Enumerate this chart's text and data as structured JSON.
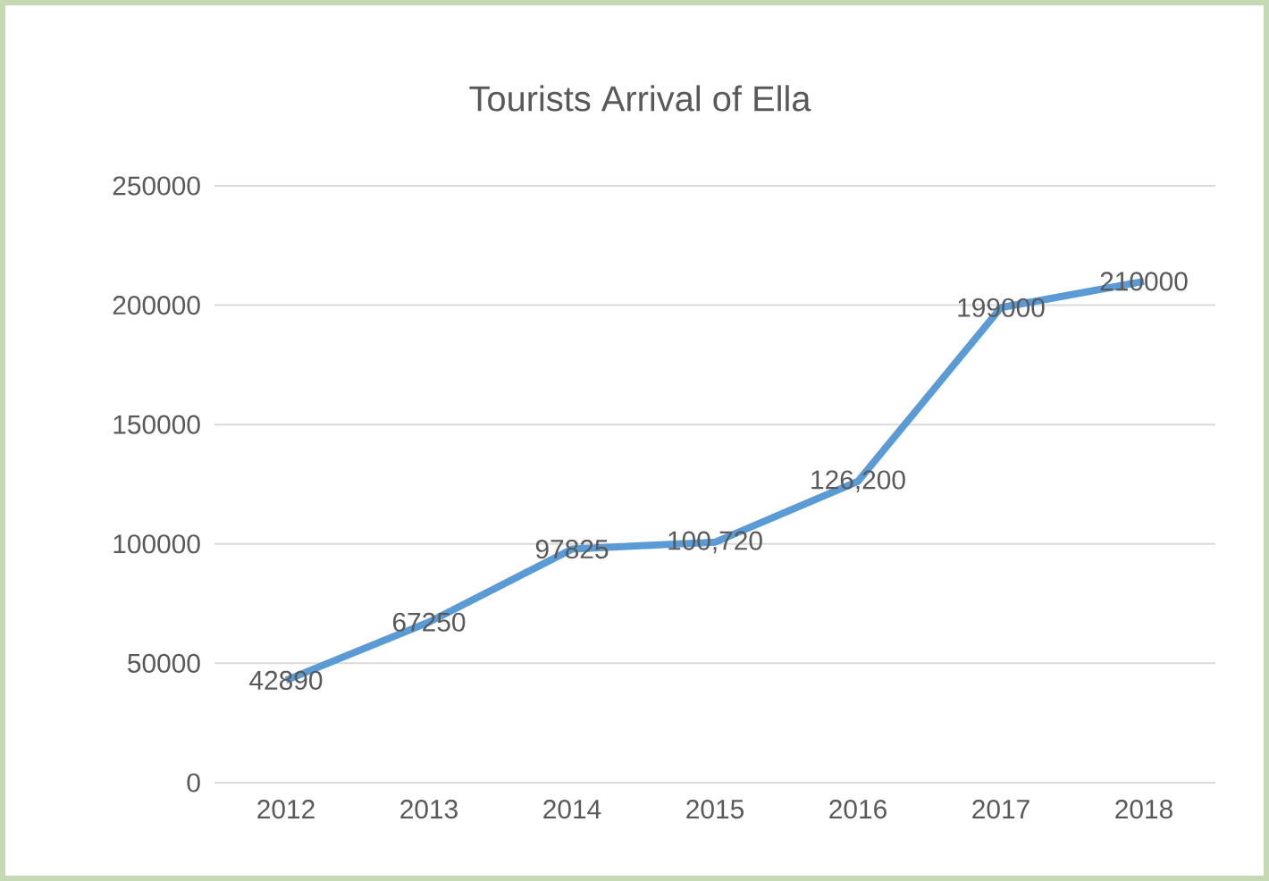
{
  "chart_data": {
    "type": "line",
    "title": "Tourists Arrival of Ella",
    "categories": [
      "2012",
      "2013",
      "2014",
      "2015",
      "2016",
      "2017",
      "2018"
    ],
    "values": [
      42890,
      67250,
      97825,
      100720,
      126200,
      199000,
      210000
    ],
    "value_labels": [
      "42890",
      "67250",
      "97825",
      "100,720",
      "126,200",
      "199000",
      "210000"
    ],
    "color": "#5b9bd5",
    "ylim": [
      0,
      250000
    ],
    "yticks": [
      0,
      50000,
      100000,
      150000,
      200000,
      250000
    ],
    "grid": "y",
    "marker": "none",
    "line_style": "solid"
  }
}
